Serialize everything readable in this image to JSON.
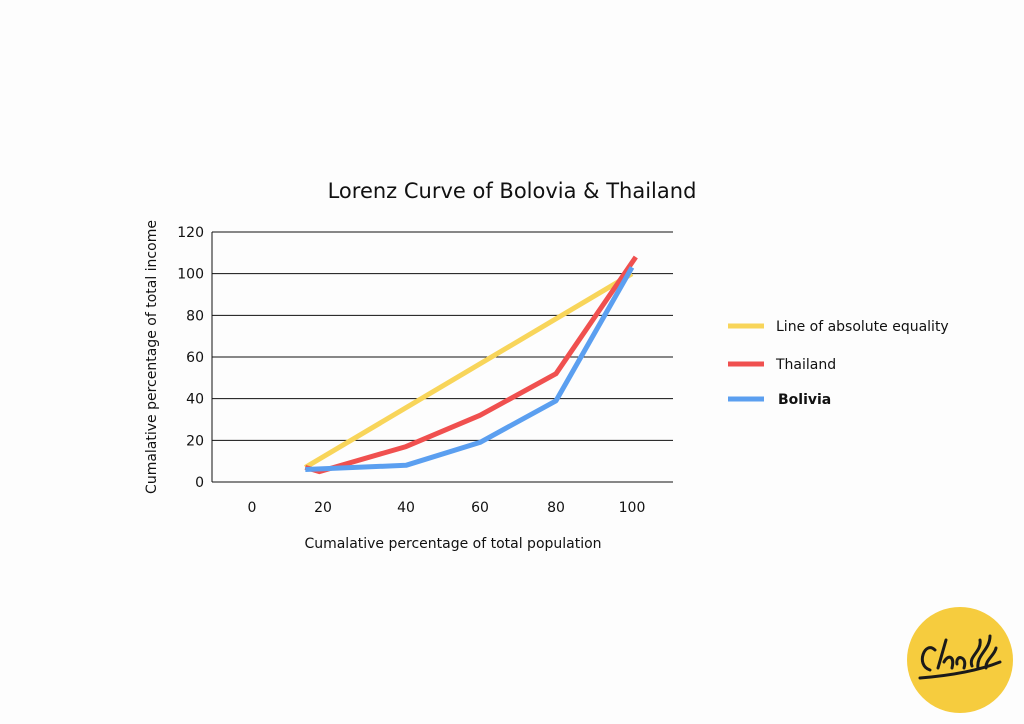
{
  "chart_data": {
    "type": "line",
    "title": "Lorenz Curve of Bolovia & Thailand",
    "xlabel": "Cumalative percentage of total population",
    "ylabel": "Cumalative percentage of total income",
    "x_ticks": [
      "0",
      "20",
      "40",
      "60",
      "80",
      "100"
    ],
    "y_ticks": [
      "0",
      "20",
      "40",
      "60",
      "80",
      "100",
      "120"
    ],
    "ylim": [
      0,
      120
    ],
    "grid": "horizontal",
    "legend_position": "right",
    "series": [
      {
        "name": "Line of absolute equality",
        "color": "#f8d55a",
        "points": [
          [
            15,
            7
          ],
          [
            100,
            100
          ]
        ]
      },
      {
        "name": "Thailand",
        "color": "#f0504f",
        "points": [
          [
            15,
            7
          ],
          [
            19,
            5
          ],
          [
            40,
            17
          ],
          [
            60,
            32
          ],
          [
            80,
            52
          ],
          [
            101,
            108
          ]
        ]
      },
      {
        "name": "Bolivia",
        "color": "#5b9ff0",
        "points": [
          [
            15,
            6
          ],
          [
            40,
            8
          ],
          [
            60,
            19
          ],
          [
            80,
            39
          ],
          [
            100,
            103
          ]
        ]
      }
    ]
  },
  "logo": {
    "text": "Chadd",
    "color": "#f6cc3e"
  }
}
